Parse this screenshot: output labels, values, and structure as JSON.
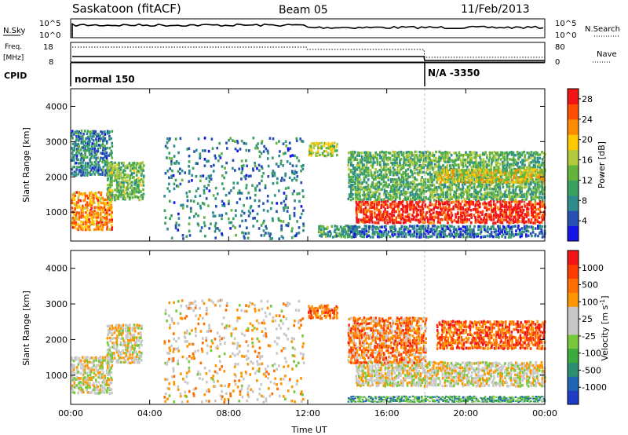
{
  "header": {
    "station": "Saskatoon (fitACF)",
    "beam": "Beam 05",
    "date": "11/Feb/2013"
  },
  "summary_panels": {
    "nsky_label": "N.Sky",
    "nsky_ticks_left": [
      "10^5",
      "10^0"
    ],
    "nsky_ticks_right": [
      "10^5",
      "10^0"
    ],
    "nsearch_label": "N.Search",
    "freq_label": "Freq.",
    "freq_unit": "[MHz]",
    "freq_ticks": [
      "18",
      "8"
    ],
    "nave_label": "Nave",
    "nave_ticks": [
      "80",
      "0"
    ],
    "cpid_label": "CPID",
    "cpid_segments": [
      {
        "label": "normal 150",
        "start_hour": 0
      },
      {
        "label": "N/A -3350",
        "start_hour": 18
      }
    ]
  },
  "chart_data": [
    {
      "type": "heatmap",
      "name": "power",
      "ylabel": "Slant Range [km]",
      "xlabel": "",
      "x_ticks": [
        "00:00",
        "04:00",
        "08:00",
        "12:00",
        "16:00",
        "20:00",
        "00:00"
      ],
      "y_ticks": [
        1000,
        2000,
        3000,
        4000
      ],
      "xlim_hours": [
        0,
        24
      ],
      "ylim_km": [
        180,
        4500
      ],
      "colorbar": {
        "label": "Power [dB]",
        "ticks": [
          "4",
          "8",
          "12",
          "16",
          "20",
          "24",
          "28"
        ],
        "range": [
          0,
          30
        ],
        "colors": [
          "#1414e6",
          "#2850b4",
          "#2e8c8c",
          "#3ca060",
          "#64b43c",
          "#b4c83c",
          "#ffc800",
          "#ff8c00",
          "#ff5000",
          "#f01414"
        ]
      },
      "regions": [
        {
          "t0": 0.0,
          "t1": 2.1,
          "r0": 450,
          "r1": 1550,
          "level": 0.75
        },
        {
          "t0": 0.0,
          "t1": 2.1,
          "r0": 2000,
          "r1": 3300,
          "level": 0.25
        },
        {
          "t0": 1.8,
          "t1": 3.7,
          "r0": 1300,
          "r1": 2400,
          "level": 0.45
        },
        {
          "t0": 4.7,
          "t1": 11.8,
          "r0": 200,
          "r1": 3100,
          "level": 0.25
        },
        {
          "t0": 12.0,
          "t1": 13.5,
          "r0": 2550,
          "r1": 2950,
          "level": 0.5
        },
        {
          "t0": 12.5,
          "t1": 14.5,
          "r0": 250,
          "r1": 600,
          "level": 0.35
        },
        {
          "t0": 14.4,
          "t1": 24.0,
          "r0": 650,
          "r1": 1300,
          "level": 0.95
        },
        {
          "t0": 14.0,
          "t1": 24.0,
          "r0": 1300,
          "r1": 2700,
          "level": 0.4
        },
        {
          "t0": 18.5,
          "t1": 24.0,
          "r0": 1800,
          "r1": 2200,
          "level": 0.6
        },
        {
          "t0": 14.0,
          "t1": 24.0,
          "r0": 250,
          "r1": 600,
          "level": 0.2
        }
      ]
    },
    {
      "type": "heatmap",
      "name": "velocity",
      "ylabel": "Slant Range [km]",
      "xlabel": "Time UT",
      "x_ticks": [
        "00:00",
        "04:00",
        "08:00",
        "12:00",
        "16:00",
        "20:00",
        "00:00"
      ],
      "y_ticks": [
        1000,
        2000,
        3000,
        4000
      ],
      "xlim_hours": [
        0,
        24
      ],
      "ylim_km": [
        180,
        4500
      ],
      "colorbar": {
        "label": "Velocity [m s^-1]",
        "ticks": [
          "1000",
          "500",
          "100",
          "25",
          "-25",
          "-100",
          "-500",
          "-1000"
        ],
        "colors": [
          "#1e3cc8",
          "#1e64b4",
          "#2e8c70",
          "#3caa3c",
          "#78c83c",
          "#c8c8c8",
          "#c8c8c8",
          "#ff9600",
          "#ff6e00",
          "#ff3c00",
          "#f01414"
        ]
      },
      "regions": [
        {
          "t0": 0.0,
          "t1": 2.1,
          "r0": 450,
          "r1": 1500,
          "level": 0.55
        },
        {
          "t0": 1.8,
          "t1": 3.6,
          "r0": 1300,
          "r1": 2400,
          "level": 0.55
        },
        {
          "t0": 4.7,
          "t1": 11.8,
          "r0": 200,
          "r1": 3100,
          "level": 0.6
        },
        {
          "t0": 12.0,
          "t1": 13.5,
          "r0": 2550,
          "r1": 2950,
          "level": 0.8
        },
        {
          "t0": 14.4,
          "t1": 24.0,
          "r0": 650,
          "r1": 1350,
          "level": 0.55
        },
        {
          "t0": 14.0,
          "t1": 18.0,
          "r0": 1300,
          "r1": 2600,
          "level": 0.75
        },
        {
          "t0": 18.5,
          "t1": 24.0,
          "r0": 1700,
          "r1": 2500,
          "level": 0.82
        },
        {
          "t0": 14.0,
          "t1": 24.0,
          "r0": 220,
          "r1": 400,
          "level": 0.3
        }
      ]
    }
  ]
}
